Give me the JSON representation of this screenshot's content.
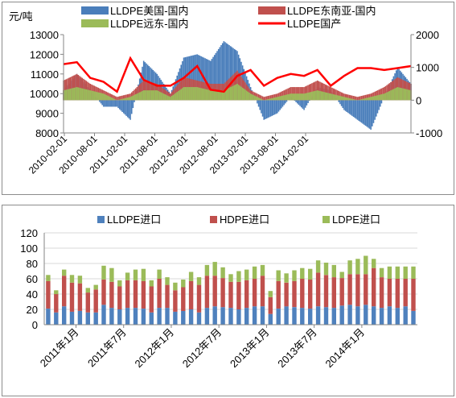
{
  "chart_data": [
    {
      "type": "area",
      "ylabel": "元/吨",
      "ylim": [
        8000,
        13000
      ],
      "yticks": [
        8000,
        9000,
        10000,
        11000,
        12000,
        13000
      ],
      "y2lim": [
        -1000,
        2000
      ],
      "y2ticks": [
        -1000,
        0,
        1000,
        2000
      ],
      "xticks": [
        "2010-02-01",
        "2010-08-01",
        "2011-02-01",
        "2011-08-01",
        "2012-02-01",
        "2012-08-01",
        "2013-02-01",
        "2013-08-01",
        "2014-02-01"
      ],
      "legend": [
        "LLDPE美国-国内",
        "LLDPE东南亚-国内",
        "LLDPE远东-国内",
        "LLDPE国产"
      ],
      "legend_position": "top",
      "grid": false,
      "colors": {
        "us": "#4a7ebb",
        "sea": "#c0504d",
        "fe": "#9bbb59",
        "domestic": "#ff0000"
      },
      "x": [
        "2010-02",
        "2010-04",
        "2010-06",
        "2010-08",
        "2010-10",
        "2010-12",
        "2011-02",
        "2011-04",
        "2011-06",
        "2011-08",
        "2011-10",
        "2011-12",
        "2012-02",
        "2012-04",
        "2012-06",
        "2012-08",
        "2012-10",
        "2012-12",
        "2013-02",
        "2013-04",
        "2013-06",
        "2013-08",
        "2013-10",
        "2013-12",
        "2014-02",
        "2014-04",
        "2014-06"
      ],
      "series": [
        {
          "name": "LLDPE国产",
          "axis": "left",
          "values": [
            11500,
            11600,
            10800,
            10600,
            10100,
            11800,
            10700,
            10400,
            10400,
            10800,
            11400,
            10200,
            10100,
            10900,
            11200,
            10400,
            10800,
            11000,
            10900,
            11200,
            10400,
            10900,
            11300,
            11300,
            11200,
            11300,
            11400
          ]
        },
        {
          "name": "LLDPE美国-国内",
          "axis": "right",
          "values": [
            300,
            800,
            300,
            -200,
            -200,
            -600,
            1200,
            800,
            200,
            1300,
            1400,
            1200,
            1800,
            1500,
            400,
            -600,
            -400,
            100,
            -300,
            400,
            300,
            -300,
            -600,
            -900,
            100,
            1000,
            500
          ]
        },
        {
          "name": "LLDPE东南亚-国内",
          "axis": "right",
          "values": [
            600,
            800,
            500,
            300,
            100,
            200,
            600,
            500,
            200,
            700,
            600,
            500,
            500,
            900,
            300,
            100,
            200,
            400,
            400,
            600,
            400,
            200,
            100,
            200,
            400,
            700,
            500
          ]
        },
        {
          "name": "LLDPE远东-国内",
          "axis": "right",
          "values": [
            300,
            400,
            300,
            200,
            0,
            100,
            300,
            300,
            100,
            400,
            400,
            300,
            300,
            500,
            200,
            0,
            100,
            200,
            200,
            300,
            200,
            100,
            0,
            100,
            200,
            400,
            300
          ]
        }
      ]
    },
    {
      "type": "bar",
      "ylim": [
        0,
        120
      ],
      "yticks": [
        0,
        20,
        40,
        60,
        80,
        100,
        120
      ],
      "legend": [
        "LLDPE进口",
        "HDPE进口",
        "LDPE进口"
      ],
      "legend_position": "top",
      "grid": true,
      "colors": {
        "lldpe": "#4f81bd",
        "hdpe": "#c0504d",
        "ldpe": "#9bbb59"
      },
      "xticks": [
        "2011年1月",
        "2011年7月",
        "2012年1月",
        "2012年7月",
        "2013年1月",
        "2013年7月",
        "2014年1月"
      ],
      "x": [
        "2010-10",
        "2010-11",
        "2010-12",
        "2011-01",
        "2011-02",
        "2011-03",
        "2011-04",
        "2011-05",
        "2011-06",
        "2011-07",
        "2011-08",
        "2011-09",
        "2011-10",
        "2011-11",
        "2011-12",
        "2012-01",
        "2012-02",
        "2012-03",
        "2012-04",
        "2012-05",
        "2012-06",
        "2012-07",
        "2012-08",
        "2012-09",
        "2012-10",
        "2012-11",
        "2012-12",
        "2013-01",
        "2013-02",
        "2013-03",
        "2013-04",
        "2013-05",
        "2013-06",
        "2013-07",
        "2013-08",
        "2013-09",
        "2013-10",
        "2013-11",
        "2013-12",
        "2014-01",
        "2014-02",
        "2014-03",
        "2014-04",
        "2014-05",
        "2014-06",
        "2014-07",
        "2014-08"
      ],
      "series": [
        {
          "name": "LLDPE进口",
          "values": [
            21,
            16,
            24,
            17,
            18,
            16,
            16,
            26,
            22,
            20,
            22,
            22,
            21,
            16,
            22,
            22,
            17,
            18,
            20,
            16,
            22,
            24,
            23,
            22,
            20,
            22,
            24,
            24,
            14,
            21,
            24,
            23,
            22,
            21,
            24,
            23,
            22,
            25,
            26,
            24,
            26,
            24,
            22,
            24,
            22,
            24,
            18
          ]
        },
        {
          "name": "HDPE进口",
          "values": [
            36,
            24,
            40,
            38,
            36,
            26,
            30,
            33,
            34,
            30,
            36,
            36,
            36,
            34,
            38,
            30,
            28,
            31,
            37,
            36,
            42,
            40,
            38,
            34,
            36,
            36,
            36,
            40,
            22,
            36,
            31,
            34,
            38,
            38,
            44,
            42,
            40,
            36,
            40,
            42,
            40,
            50,
            40,
            36,
            38,
            36,
            42
          ]
        },
        {
          "name": "LDPE进口",
          "values": [
            8,
            5,
            8,
            10,
            10,
            6,
            6,
            18,
            18,
            8,
            10,
            14,
            16,
            8,
            12,
            10,
            10,
            10,
            12,
            10,
            14,
            18,
            14,
            10,
            14,
            14,
            16,
            14,
            8,
            14,
            12,
            14,
            14,
            14,
            16,
            16,
            16,
            8,
            18,
            20,
            24,
            12,
            12,
            16,
            16,
            16,
            16
          ]
        }
      ]
    }
  ]
}
